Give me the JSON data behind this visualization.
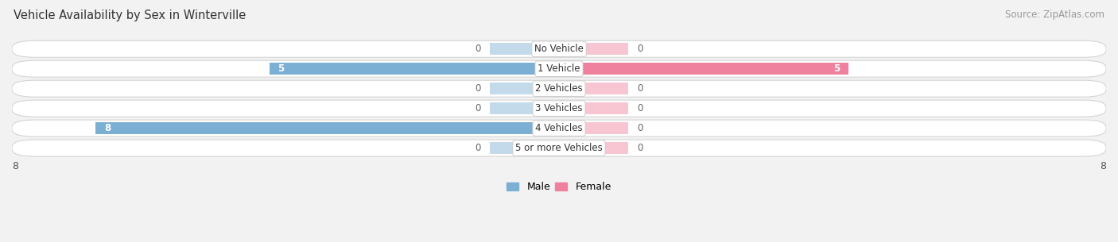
{
  "title": "Vehicle Availability by Sex in Winterville",
  "source": "Source: ZipAtlas.com",
  "categories": [
    "No Vehicle",
    "1 Vehicle",
    "2 Vehicles",
    "3 Vehicles",
    "4 Vehicles",
    "5 or more Vehicles"
  ],
  "male_values": [
    0,
    5,
    0,
    0,
    8,
    0
  ],
  "female_values": [
    0,
    5,
    0,
    0,
    0,
    0
  ],
  "male_color": "#7bafd4",
  "female_color": "#f0819e",
  "male_label": "Male",
  "female_label": "Female",
  "x_max": 8,
  "bg_color": "#f2f2f2",
  "value_color_dark": "#555555",
  "value_color_male": "#ffffff",
  "value_color_female": "#ffffff",
  "title_fontsize": 10.5,
  "source_fontsize": 8.5,
  "bar_height": 0.62,
  "zero_stub": 1.2
}
